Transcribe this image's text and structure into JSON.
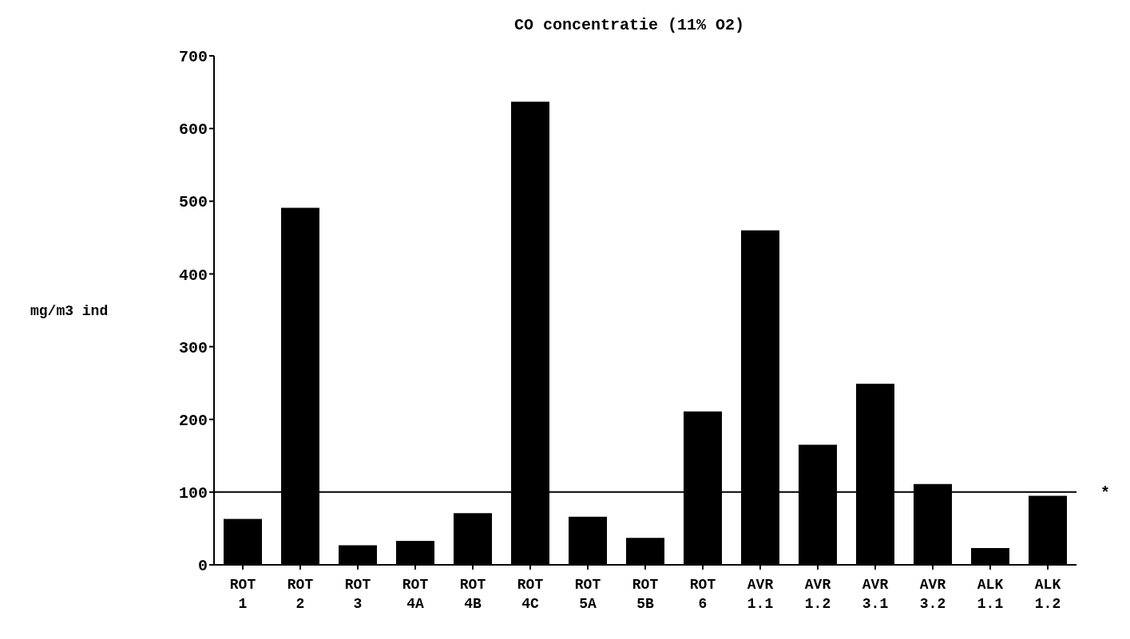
{
  "chart_data": {
    "type": "bar",
    "title": "CO concentratie (11% O2)",
    "ylabel": "mg/m3 ind",
    "categories": [
      "ROT 1",
      "ROT 2",
      "ROT 3",
      "ROT 4A",
      "ROT 4B",
      "ROT 4C",
      "ROT 5A",
      "ROT 5B",
      "ROT 6",
      "AVR 1.1",
      "AVR 1.2",
      "AVR 3.1",
      "AVR 3.2",
      "ALK 1.1",
      "ALK 1.2"
    ],
    "values": [
      63,
      491,
      27,
      33,
      71,
      637,
      66,
      37,
      211,
      460,
      165,
      249,
      111,
      23,
      95
    ],
    "color": "#000000",
    "ylim": [
      0,
      700
    ],
    "yticks": [
      0,
      100,
      200,
      300,
      400,
      500,
      600,
      700
    ],
    "grid": false,
    "ref_lines": [
      {
        "axis": "y",
        "value": 100,
        "label": "*",
        "color": "#000000"
      }
    ]
  }
}
